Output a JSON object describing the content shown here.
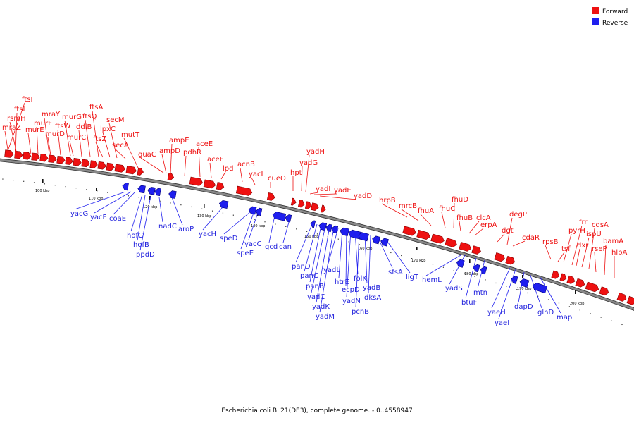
{
  "caption": "Escherichia coli BL21(DE3), complete genome. - 0..4558947",
  "colors": {
    "forward": "#ee1111",
    "reverse": "#1f1fee",
    "backbone": "#888888"
  },
  "legend": [
    {
      "label": "Forward",
      "color": "#ee1111"
    },
    {
      "label": "Reverse",
      "color": "#1f1fee"
    }
  ],
  "ticks": [
    "100 kbp",
    "110 kbp",
    "120 kbp",
    "130 kbp",
    "140 kbp",
    "150 kbp",
    "160 kbp",
    "170 kbp",
    "180 kbp",
    "190 kbp",
    "200 kbp"
  ],
  "forward_genes": [
    "ftsI",
    "ftsL",
    "rsmH",
    "mraZ",
    "murF",
    "murE",
    "mraY",
    "murD",
    "ftsW",
    "murG",
    "murC",
    "ddlB",
    "ftsQ",
    "ftsA",
    "ftsZ",
    "lpxC",
    "secM",
    "secA",
    "mutT",
    "guaC",
    "ampD",
    "ampE",
    "pdhR",
    "aceE",
    "aceF",
    "lpd",
    "acnB",
    "yacL",
    "cueO",
    "hpt",
    "yadH",
    "yadG",
    "yadI",
    "yadE",
    "yadD",
    "hrpB",
    "mrcB",
    "fhuA",
    "fhuC",
    "fhuD",
    "fhuB",
    "clcA",
    "erpA",
    "dgt",
    "degP",
    "cdaR",
    "rpsB",
    "tsf",
    "pyrH",
    "frr",
    "dxr",
    "ispU",
    "cdsA",
    "rseP",
    "bamA",
    "hlpA"
  ],
  "reverse_genes": [
    "yacG",
    "yacF",
    "coaE",
    "hofC",
    "hofB",
    "ppdD",
    "nadC",
    "aroP",
    "yacH",
    "speD",
    "speE",
    "yacC",
    "gcd",
    "can",
    "panD",
    "panC",
    "panB",
    "yadC",
    "yadK",
    "yadM",
    "yadL",
    "htrE",
    "ecpD",
    "yadN",
    "folK",
    "pcnB",
    "yadB",
    "dksA",
    "sfsA",
    "ligT",
    "hemL",
    "yadS",
    "btuF",
    "mtn",
    "yaeH",
    "yaeI",
    "dapD",
    "glnD",
    "map"
  ]
}
